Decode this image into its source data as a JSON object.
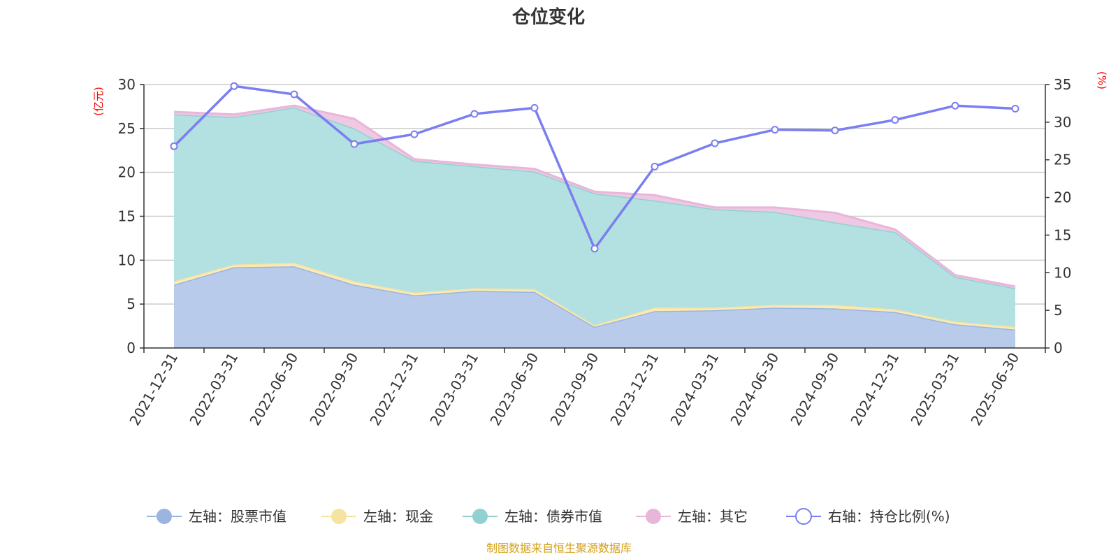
{
  "chart_data": {
    "type": "area",
    "title": "仓位变化",
    "left_unit": "(亿元)",
    "right_unit": "(%)",
    "categories": [
      "2021-12-31",
      "2022-03-31",
      "2022-06-30",
      "2022-09-30",
      "2022-12-31",
      "2023-03-31",
      "2023-06-30",
      "2023-09-30",
      "2023-12-31",
      "2024-03-31",
      "2024-06-30",
      "2024-09-30",
      "2024-12-31",
      "2025-03-31",
      "2025-06-30"
    ],
    "left_axis": {
      "min": 0,
      "max": 30,
      "ticks": [
        "0",
        "5",
        "10",
        "15",
        "20",
        "25",
        "30"
      ],
      "tick_values": [
        0,
        5,
        10,
        15,
        20,
        25,
        30
      ]
    },
    "right_axis": {
      "min": 0,
      "max": 35,
      "ticks": [
        "0",
        "5",
        "10",
        "15",
        "20",
        "25",
        "30",
        "35"
      ],
      "tick_values": [
        0,
        5,
        10,
        15,
        20,
        25,
        30,
        35
      ]
    },
    "stacked_series": [
      {
        "name": "左轴：股票市值",
        "color": "#9bb5e0",
        "fill": "#b8cbeb",
        "values": [
          7.2,
          9.2,
          9.3,
          7.2,
          6.0,
          6.5,
          6.4,
          2.4,
          4.2,
          4.3,
          4.6,
          4.5,
          4.1,
          2.7,
          2.1
        ]
      },
      {
        "name": "左轴：现金",
        "color": "#f7e3a0",
        "fill": "#f9eab7",
        "values": [
          0.4,
          0.3,
          0.4,
          0.4,
          0.3,
          0.3,
          0.3,
          0.2,
          0.4,
          0.3,
          0.3,
          0.4,
          0.3,
          0.3,
          0.3
        ]
      },
      {
        "name": "左轴：债券市值",
        "color": "#92d1d1",
        "fill": "#b3e0e0",
        "values": [
          19.0,
          16.8,
          17.7,
          17.4,
          15.0,
          13.9,
          13.4,
          15.0,
          12.2,
          11.2,
          10.6,
          9.4,
          8.8,
          5.1,
          4.4
        ]
      },
      {
        "name": "左轴：其它",
        "color": "#e8b6d9",
        "fill": "#efc8e3",
        "values": [
          0.3,
          0.3,
          0.2,
          1.1,
          0.2,
          0.2,
          0.3,
          0.2,
          0.6,
          0.2,
          0.5,
          1.1,
          0.3,
          0.2,
          0.2
        ]
      }
    ],
    "line_series": {
      "name": "右轴：持仓比例(%)",
      "color": "#7a7ef0",
      "values": [
        26.8,
        34.8,
        33.7,
        27.1,
        28.4,
        31.1,
        31.9,
        13.2,
        24.1,
        27.2,
        29.0,
        28.9,
        30.3,
        32.2,
        31.8
      ]
    },
    "grid": true,
    "legend_position": "bottom"
  },
  "source_note": "制图数据来自恒生聚源数据库"
}
